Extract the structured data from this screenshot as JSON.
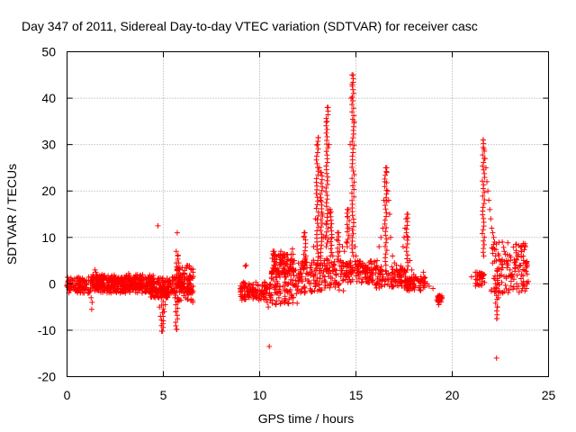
{
  "chart_data": {
    "type": "scatter",
    "title": "Day 347 of 2011, Sidereal Day-to-day VTEC variation (SDTVAR) for receiver casc",
    "xlabel": "GPS time / hours",
    "ylabel": "SDTVAR / TECUs",
    "xlim": [
      0,
      25
    ],
    "ylim": [
      -20,
      50
    ],
    "xticks": [
      0,
      5,
      10,
      15,
      20,
      25
    ],
    "yticks": [
      -20,
      -10,
      0,
      10,
      20,
      30,
      40,
      50
    ],
    "xtick_labels": [
      "0",
      "5",
      "10",
      "15",
      "20",
      "25"
    ],
    "ytick_labels": [
      "-20",
      "-10",
      "0",
      "10",
      "20",
      "30",
      "40",
      "50"
    ],
    "grid": true,
    "marker": "+",
    "color": "#ff0000",
    "series": [
      {
        "name": "SDTVAR",
        "points": [
          [
            0.0,
            -0.5
          ],
          [
            0.1,
            0.5
          ],
          [
            0.2,
            0.8
          ],
          [
            0.3,
            0.2
          ],
          [
            0.4,
            -0.3
          ],
          [
            0.5,
            0.6
          ],
          [
            0.6,
            0.0
          ],
          [
            0.7,
            -0.2
          ],
          [
            0.8,
            0.4
          ],
          [
            0.9,
            -0.6
          ],
          [
            1.0,
            -0.8
          ],
          [
            1.1,
            -1.2
          ],
          [
            1.2,
            -1.6
          ],
          [
            1.25,
            -3.0
          ],
          [
            1.28,
            -5.5
          ],
          [
            1.3,
            -4.0
          ],
          [
            1.35,
            2.0
          ],
          [
            1.4,
            1.5
          ],
          [
            1.45,
            3.0
          ],
          [
            1.5,
            2.5
          ],
          [
            1.55,
            2.0
          ],
          [
            1.6,
            1.6
          ],
          [
            1.8,
            1.4
          ],
          [
            2.0,
            1.2
          ],
          [
            2.2,
            1.1
          ],
          [
            2.4,
            1.0
          ],
          [
            2.6,
            0.9
          ],
          [
            2.8,
            0.8
          ],
          [
            3.0,
            0.6
          ],
          [
            3.2,
            2.2
          ],
          [
            3.3,
            0.4
          ],
          [
            3.5,
            0.2
          ],
          [
            3.7,
            0.0
          ],
          [
            3.9,
            -0.2
          ],
          [
            4.1,
            -0.4
          ],
          [
            4.3,
            -0.6
          ],
          [
            4.5,
            -0.8
          ],
          [
            4.6,
            -1.2
          ],
          [
            4.7,
            -1.6
          ],
          [
            4.72,
            12.5
          ],
          [
            4.75,
            -3.0
          ],
          [
            4.8,
            -5.0
          ],
          [
            4.85,
            -7.0
          ],
          [
            4.9,
            -9.0
          ],
          [
            4.95,
            -10.2
          ],
          [
            5.0,
            -8.0
          ],
          [
            5.05,
            -6.0
          ],
          [
            5.1,
            -4.5
          ],
          [
            5.15,
            -3.0
          ],
          [
            5.2,
            -2.5
          ],
          [
            5.3,
            -2.0
          ],
          [
            5.4,
            -1.5
          ],
          [
            5.5,
            -1.8
          ],
          [
            5.6,
            -3.0
          ],
          [
            5.65,
            -6.0
          ],
          [
            5.7,
            -9.8
          ],
          [
            5.72,
            11.0
          ],
          [
            5.75,
            6.0
          ],
          [
            5.8,
            4.5
          ],
          [
            5.85,
            3.0
          ],
          [
            5.9,
            2.0
          ],
          [
            5.95,
            1.0
          ],
          [
            6.0,
            0.0
          ],
          [
            6.05,
            -1.0
          ],
          [
            6.1,
            -2.0
          ],
          [
            6.2,
            -1.5
          ],
          [
            6.3,
            -1.8
          ],
          [
            6.4,
            -1.2
          ],
          [
            6.5,
            -1.5
          ],
          [
            9.0,
            -1.0
          ],
          [
            9.1,
            -1.5
          ],
          [
            9.2,
            -0.8
          ],
          [
            9.25,
            3.8
          ],
          [
            9.3,
            4.0
          ],
          [
            9.35,
            -2.5
          ],
          [
            9.4,
            -1.6
          ],
          [
            9.5,
            -1.2
          ],
          [
            9.6,
            -1.8
          ],
          [
            9.7,
            -1.4
          ],
          [
            9.8,
            -2.0
          ],
          [
            9.9,
            -1.6
          ],
          [
            10.0,
            -2.4
          ],
          [
            10.1,
            -1.8
          ],
          [
            10.2,
            -2.2
          ],
          [
            10.3,
            -3.0
          ],
          [
            10.35,
            -2.0
          ],
          [
            10.4,
            -4.0
          ],
          [
            10.45,
            -5.0
          ],
          [
            10.5,
            -13.5
          ],
          [
            10.55,
            -3.5
          ],
          [
            10.6,
            -2.5
          ],
          [
            10.65,
            5.5
          ],
          [
            10.7,
            6.5
          ],
          [
            10.75,
            7.0
          ],
          [
            10.8,
            6.0
          ],
          [
            10.85,
            3.0
          ],
          [
            10.9,
            0.5
          ],
          [
            10.95,
            -2.0
          ],
          [
            11.0,
            -3.0
          ],
          [
            11.1,
            7.0
          ],
          [
            11.2,
            6.0
          ],
          [
            11.3,
            -0.5
          ],
          [
            11.4,
            -1.5
          ],
          [
            11.5,
            0.0
          ],
          [
            11.6,
            5.0
          ],
          [
            11.7,
            7.5
          ],
          [
            11.8,
            5.0
          ],
          [
            11.9,
            0.0
          ],
          [
            12.0,
            0.5
          ],
          [
            12.1,
            1.0
          ],
          [
            12.2,
            1.5
          ],
          [
            12.3,
            10.0
          ],
          [
            12.35,
            11.0
          ],
          [
            12.4,
            6.0
          ],
          [
            12.5,
            2.0
          ],
          [
            12.6,
            2.5
          ],
          [
            12.7,
            4.5
          ],
          [
            12.8,
            8.0
          ],
          [
            12.9,
            14.0
          ],
          [
            13.0,
            30.0
          ],
          [
            13.05,
            31.5
          ],
          [
            13.1,
            25.0
          ],
          [
            13.15,
            18.0
          ],
          [
            13.2,
            24.0
          ],
          [
            13.25,
            15.0
          ],
          [
            13.3,
            10.0
          ],
          [
            13.35,
            5.0
          ],
          [
            13.4,
            10.0
          ],
          [
            13.45,
            13.0
          ],
          [
            13.5,
            35.0
          ],
          [
            13.55,
            38.0
          ],
          [
            13.6,
            30.0
          ],
          [
            13.65,
            16.0
          ],
          [
            13.7,
            15.5
          ],
          [
            13.75,
            10.0
          ],
          [
            13.8,
            6.0
          ],
          [
            13.85,
            4.0
          ],
          [
            13.9,
            3.0
          ],
          [
            14.0,
            9.5
          ],
          [
            14.1,
            11.0
          ],
          [
            14.15,
            7.0
          ],
          [
            14.2,
            5.0
          ],
          [
            14.3,
            8.0
          ],
          [
            14.35,
            -1.5
          ],
          [
            14.4,
            7.0
          ],
          [
            14.5,
            9.0
          ],
          [
            14.55,
            14.5
          ],
          [
            14.6,
            16.0
          ],
          [
            14.65,
            12.0
          ],
          [
            14.7,
            30.0
          ],
          [
            14.75,
            40.0
          ],
          [
            14.8,
            43.0
          ],
          [
            14.85,
            45.0
          ],
          [
            14.9,
            35.0
          ],
          [
            14.95,
            8.0
          ],
          [
            15.0,
            6.0
          ],
          [
            15.1,
            5.0
          ],
          [
            15.2,
            4.5
          ],
          [
            15.3,
            4.0
          ],
          [
            15.4,
            3.5
          ],
          [
            15.5,
            3.0
          ],
          [
            15.6,
            3.5
          ],
          [
            15.7,
            3.0
          ],
          [
            15.8,
            2.5
          ],
          [
            15.9,
            3.0
          ],
          [
            16.0,
            3.5
          ],
          [
            16.1,
            5.0
          ],
          [
            16.2,
            8.0
          ],
          [
            16.3,
            10.0
          ],
          [
            16.4,
            12.0
          ],
          [
            16.45,
            18.0
          ],
          [
            16.5,
            22.0
          ],
          [
            16.55,
            25.0
          ],
          [
            16.6,
            24.0
          ],
          [
            16.65,
            20.0
          ],
          [
            16.7,
            18.0
          ],
          [
            16.75,
            15.0
          ],
          [
            16.8,
            10.0
          ],
          [
            16.9,
            6.0
          ],
          [
            17.0,
            4.5
          ],
          [
            17.1,
            4.0
          ],
          [
            17.2,
            2.5
          ],
          [
            17.3,
            2.0
          ],
          [
            17.4,
            3.0
          ],
          [
            17.45,
            8.0
          ],
          [
            17.5,
            10.0
          ],
          [
            17.55,
            12.0
          ],
          [
            17.6,
            14.0
          ],
          [
            17.65,
            15.0
          ],
          [
            17.7,
            10.0
          ],
          [
            17.8,
            5.0
          ],
          [
            17.9,
            3.0
          ],
          [
            18.0,
            2.0
          ],
          [
            18.1,
            1.5
          ],
          [
            18.2,
            1.0
          ],
          [
            18.3,
            0.5
          ],
          [
            18.4,
            1.0
          ],
          [
            18.5,
            2.5
          ],
          [
            18.6,
            0.5
          ],
          [
            18.7,
            0.0
          ],
          [
            18.8,
            -0.5
          ],
          [
            19.0,
            -1.0
          ],
          [
            19.2,
            -3.5
          ],
          [
            19.3,
            -4.5
          ],
          [
            19.35,
            -3.0
          ],
          [
            19.4,
            -3.5
          ],
          [
            21.0,
            1.5
          ],
          [
            21.2,
            2.5
          ],
          [
            21.4,
            1.0
          ],
          [
            21.5,
            2.0
          ],
          [
            21.6,
            31.0
          ],
          [
            21.65,
            29.0
          ],
          [
            21.7,
            27.0
          ],
          [
            21.75,
            25.0
          ],
          [
            21.8,
            22.0
          ],
          [
            21.85,
            20.0
          ],
          [
            21.9,
            18.0
          ],
          [
            21.95,
            16.0
          ],
          [
            22.0,
            14.0
          ],
          [
            22.05,
            12.0
          ],
          [
            22.1,
            11.0
          ],
          [
            22.15,
            10.0
          ],
          [
            22.2,
            9.0
          ],
          [
            22.25,
            6.0
          ],
          [
            22.3,
            -16.0
          ],
          [
            22.32,
            -7.5
          ],
          [
            22.35,
            -5.0
          ],
          [
            22.4,
            -3.0
          ],
          [
            22.45,
            -1.5
          ],
          [
            22.5,
            -2.0
          ],
          [
            22.6,
            9.0
          ],
          [
            22.7,
            7.0
          ],
          [
            22.8,
            5.0
          ],
          [
            22.9,
            4.0
          ],
          [
            23.0,
            3.0
          ],
          [
            23.1,
            2.0
          ],
          [
            23.2,
            1.0
          ],
          [
            23.3,
            8.5
          ],
          [
            23.4,
            6.0
          ],
          [
            23.5,
            4.0
          ],
          [
            23.6,
            2.0
          ],
          [
            23.7,
            0.5
          ],
          [
            23.75,
            -0.5
          ],
          [
            23.8,
            8.0
          ],
          [
            23.85,
            -1.0
          ],
          [
            23.9,
            0.0
          ],
          [
            23.95,
            0.5
          ]
        ],
        "bands": [
          [
            0.0,
            6.6,
            -2.0,
            1.5
          ],
          [
            1.3,
            4.5,
            -1.0,
            2.0
          ],
          [
            4.3,
            5.3,
            -3.0,
            -0.5
          ],
          [
            5.6,
            6.6,
            -4.0,
            4.0
          ],
          [
            9.0,
            10.6,
            -3.5,
            0.5
          ],
          [
            10.6,
            12.0,
            -4.5,
            3.0
          ],
          [
            10.6,
            11.8,
            2.0,
            6.5
          ],
          [
            12.0,
            14.2,
            -2.0,
            5.5
          ],
          [
            14.2,
            16.0,
            0.0,
            5.0
          ],
          [
            16.0,
            17.6,
            -1.0,
            4.0
          ],
          [
            17.6,
            18.6,
            -1.5,
            1.5
          ],
          [
            19.2,
            19.5,
            -4.0,
            -2.5
          ],
          [
            21.2,
            21.7,
            -0.5,
            2.5
          ],
          [
            22.0,
            23.9,
            -2.0,
            9.0
          ]
        ],
        "spikes": [
          [
            13.0,
            5.0,
            31.5
          ],
          [
            13.2,
            6.0,
            24.0
          ],
          [
            13.5,
            8.0,
            38.0
          ],
          [
            13.7,
            6.0,
            16.0
          ],
          [
            14.1,
            6.0,
            11.0
          ],
          [
            14.6,
            8.0,
            16.0
          ],
          [
            14.85,
            6.0,
            45.0
          ],
          [
            16.55,
            4.0,
            25.0
          ],
          [
            17.65,
            3.0,
            15.0
          ],
          [
            12.35,
            4.0,
            11.0
          ],
          [
            10.75,
            4.0,
            7.0
          ],
          [
            5.72,
            2.0,
            7.0
          ],
          [
            4.95,
            -10.2,
            -3.0
          ],
          [
            5.7,
            -9.8,
            -3.0
          ],
          [
            21.62,
            6.0,
            31.0
          ],
          [
            22.3,
            -7.5,
            0.0
          ]
        ]
      }
    ]
  }
}
